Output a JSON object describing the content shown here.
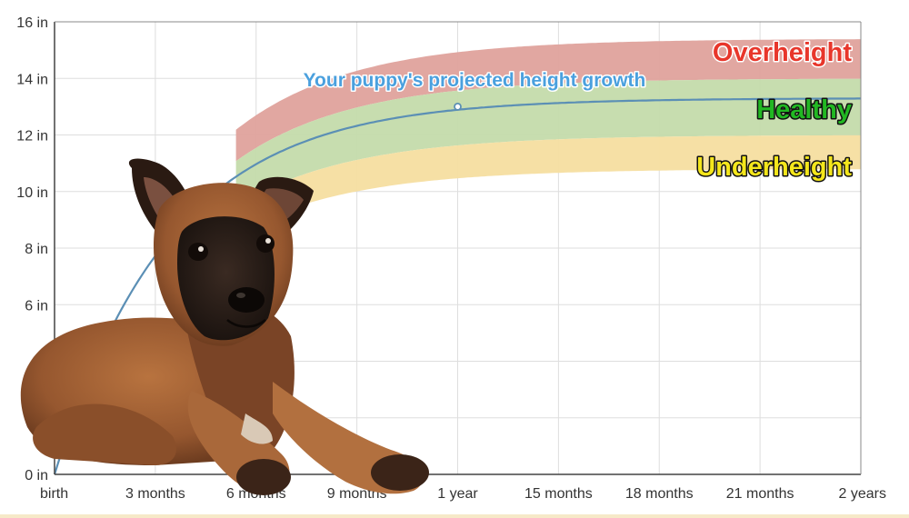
{
  "chart_data": {
    "type": "area",
    "xlabel": "",
    "ylabel": "",
    "x_ticks": [
      {
        "month": 0,
        "label": "birth"
      },
      {
        "month": 3,
        "label": "3 months"
      },
      {
        "month": 6,
        "label": "6 months"
      },
      {
        "month": 9,
        "label": "9 months"
      },
      {
        "month": 12,
        "label": "1 year"
      },
      {
        "month": 15,
        "label": "15 months"
      },
      {
        "month": 18,
        "label": "18 months"
      },
      {
        "month": 21,
        "label": "21 months"
      },
      {
        "month": 24,
        "label": "2 years"
      }
    ],
    "y_ticks": [
      {
        "value": 0,
        "label": "0 in"
      },
      {
        "value": 2,
        "label": ""
      },
      {
        "value": 4,
        "label": ""
      },
      {
        "value": 6,
        "label": "6 in"
      },
      {
        "value": 8,
        "label": "8 in"
      },
      {
        "value": 10,
        "label": "10 in"
      },
      {
        "value": 12,
        "label": "12 in"
      },
      {
        "value": 14,
        "label": "14 in"
      },
      {
        "value": 16,
        "label": "16 in"
      }
    ],
    "xlim": [
      0,
      24
    ],
    "ylim": [
      0,
      16
    ],
    "grid": true,
    "bands": [
      {
        "name": "Overheight",
        "lower": 14.0,
        "upper": 15.4,
        "fill": "#dfa29c",
        "text_color": "#e8362b"
      },
      {
        "name": "Healthy",
        "lower": 12.0,
        "upper": 14.0,
        "fill": "#c4dbab",
        "text_color": "#22b823"
      },
      {
        "name": "Underheight",
        "lower": 10.8,
        "upper": 12.0,
        "fill": "#f6dea0",
        "text_color": "#f4e61c"
      }
    ],
    "projection": {
      "label": "Your puppy's projected height growth",
      "color": "#5b8fb5",
      "label_color": "#4aa0de",
      "final_value": 13.3,
      "marker": {
        "month": 12,
        "value": 13.0
      }
    },
    "band_start_month": 5.4,
    "curve_rate": 0.29
  },
  "photo": {
    "subject": "puppy",
    "fur": "#9a5c33",
    "mask": "#2a1d18"
  }
}
